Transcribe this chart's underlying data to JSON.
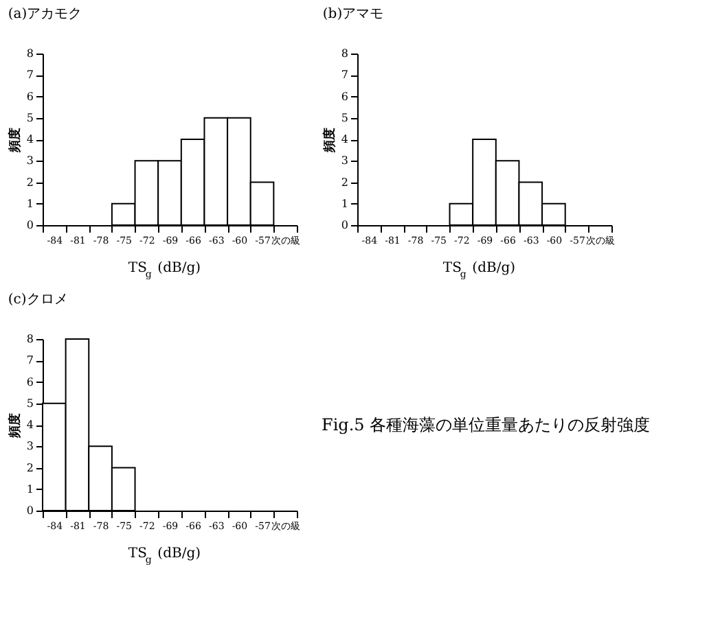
{
  "chart_data": [
    {
      "type": "bar",
      "title": "(a)アカモク",
      "xlabel": "TS$_{g}$ (dB/g)",
      "ylabel": "頻度",
      "categories": [
        "-84",
        "-81",
        "-78",
        "-75",
        "-72",
        "-69",
        "-66",
        "-63",
        "-60",
        "-57",
        "次の級"
      ],
      "values": [
        0,
        0,
        0,
        1,
        3,
        3,
        4,
        5,
        5,
        2,
        0
      ],
      "color": "#ffffff",
      "ylim": [
        0,
        8
      ],
      "yticks": [
        0,
        1,
        2,
        3,
        4,
        5,
        6,
        7,
        8
      ],
      "grid": false
    },
    {
      "type": "bar",
      "title": "(b)アマモ",
      "xlabel": "TS$_{g}$ (dB/g)",
      "ylabel": "頻度",
      "categories": [
        "-84",
        "-81",
        "-78",
        "-75",
        "-72",
        "-69",
        "-66",
        "-63",
        "-60",
        "-57",
        "次の級"
      ],
      "values": [
        0,
        0,
        0,
        0,
        1,
        4,
        3,
        2,
        1,
        0,
        0
      ],
      "color": "#ffffff",
      "ylim": [
        0,
        8
      ],
      "yticks": [
        0,
        1,
        2,
        3,
        4,
        5,
        6,
        7,
        8
      ],
      "grid": false
    },
    {
      "type": "bar",
      "title": "(c)クロメ",
      "xlabel": "TS$_{g}$ (dB/g)",
      "ylabel": "頻度",
      "categories": [
        "-84",
        "-81",
        "-78",
        "-75",
        "-72",
        "-69",
        "-66",
        "-63",
        "-60",
        "-57",
        "次の級"
      ],
      "values": [
        5,
        8,
        3,
        2,
        0,
        0,
        0,
        0,
        0,
        0,
        0
      ],
      "color": "#ffffff",
      "ylim": [
        0,
        8
      ],
      "yticks": [
        0,
        1,
        2,
        3,
        4,
        5,
        6,
        7,
        8
      ],
      "grid": false
    },
    {
      "type": "other",
      "annotations": [
        "Fig.5 各種海藻の単位重量あたりの反射強度"
      ]
    }
  ]
}
